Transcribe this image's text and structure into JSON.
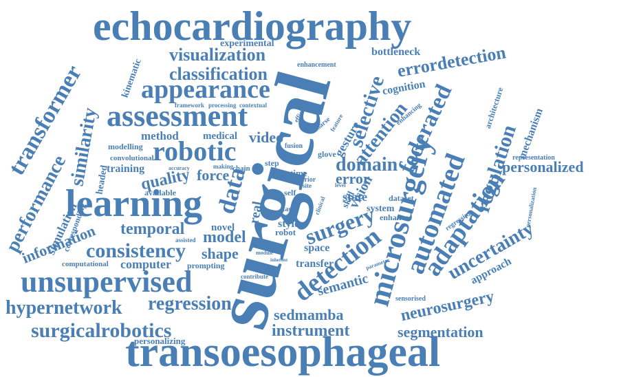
{
  "word_cloud": {
    "color": "#4a7fb5",
    "words": [
      "echocardiography",
      "surgical",
      "transoesophageal",
      "learning",
      "unsupervised",
      "assessment",
      "appearance",
      "robotic",
      "microsurgery",
      "automated",
      "adaptation",
      "detection",
      "surgery",
      "data",
      "transformer",
      "similarity",
      "performance",
      "consistency",
      "hypernetwork",
      "surgicalrobotics",
      "regression",
      "federated",
      "selective",
      "errordetection",
      "uncertainty",
      "regulation",
      "personalized",
      "domain",
      "error",
      "neurosurgery",
      "visualization",
      "classification",
      "instrument",
      "segmentation",
      "sedmamba",
      "temporal",
      "information",
      "model",
      "shape",
      "quality",
      "force",
      "video",
      "attention",
      "gesture",
      "vision",
      "semantic",
      "approach",
      "mechanism",
      "architecture",
      "bottleneck",
      "cognition",
      "experimental",
      "kinematic",
      "simulation",
      "headed",
      "corresponding",
      "computer",
      "computational",
      "personalizing",
      "training",
      "modelling",
      "convolutional",
      "method",
      "medical",
      "framework",
      "processing",
      "contextual",
      "enhancement",
      "enhancing",
      "representation",
      "personalization",
      "sensorised",
      "transfer",
      "space",
      "robot",
      "style",
      "novel",
      "state",
      "system",
      "dataset",
      "enhance",
      "skill",
      "real",
      "prompting",
      "available",
      "accuracy",
      "assisted",
      "module",
      "inherent",
      "contribute",
      "time",
      "prior",
      "site",
      "self",
      "step",
      "chain",
      "making",
      "fusion",
      "glove",
      "coarse",
      "feature",
      "efficient",
      "regressing",
      "level",
      "clinical",
      "task",
      "parameter"
    ]
  }
}
